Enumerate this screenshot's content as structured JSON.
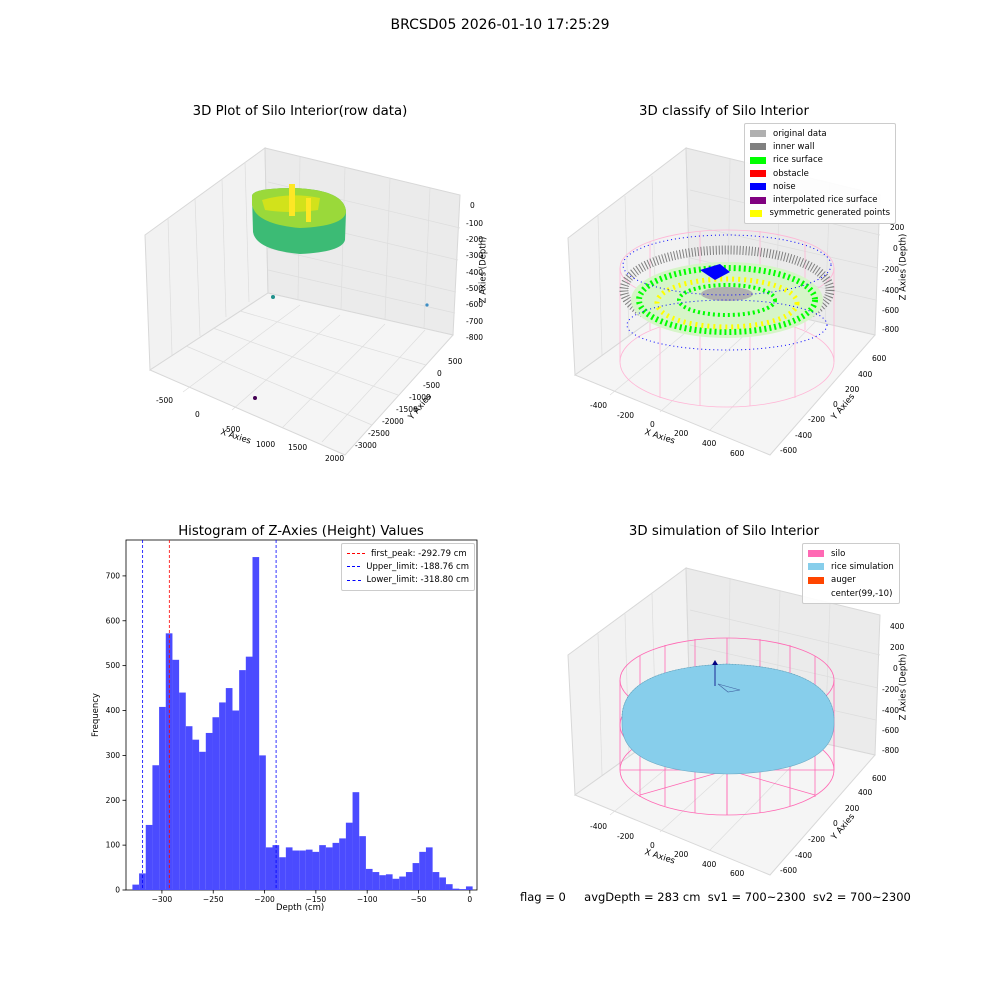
{
  "suptitle": "BRCSD05 2026-01-10 17:25:29",
  "panels": {
    "raw": {
      "title": "3D Plot of Silo Interior(row data)",
      "xlabel": "X Axies",
      "ylabel": "Y Axies",
      "zlabel": "Z Axies (Depth)",
      "xticks": [
        "-500",
        "0",
        "500",
        "1000",
        "1500",
        "2000"
      ],
      "yticks": [
        "500",
        "0",
        "-500",
        "-1000",
        "-1500",
        "-2000",
        "-2500",
        "-3000"
      ],
      "zticks": [
        "0",
        "-100",
        "-200",
        "-300",
        "-400",
        "-500",
        "-600",
        "-700",
        "-800"
      ]
    },
    "classify": {
      "title": "3D classify of Silo Interior",
      "xlabel": "X Axies",
      "ylabel": "Y Axies",
      "zlabel": "Z Axies (Depth)",
      "xticks": [
        "-400",
        "-200",
        "0",
        "200",
        "400",
        "600"
      ],
      "yticks": [
        "600",
        "400",
        "200",
        "0",
        "-200",
        "-400",
        "-600"
      ],
      "zticks": [
        "200",
        "0",
        "-200",
        "-400",
        "-600",
        "-800"
      ],
      "legend": [
        {
          "label": "original data",
          "color": "#b0b0b0"
        },
        {
          "label": "inner wall",
          "color": "#808080"
        },
        {
          "label": "rice surface",
          "color": "#00ff00"
        },
        {
          "label": "obstacle",
          "color": "#ff0000"
        },
        {
          "label": "noise",
          "color": "#0000ff"
        },
        {
          "label": "interpolated rice surface",
          "color": "#800080"
        },
        {
          "label": "symmetric generated points",
          "color": "#ffff00"
        }
      ]
    },
    "histogram": {
      "title": "Histogram of Z-Axies (Height) Values",
      "legend": [
        {
          "label": "first_peak: -292.79 cm",
          "color": "#ff0000"
        },
        {
          "label": "Upper_limit: -188.76 cm",
          "color": "#0000ff"
        },
        {
          "label": "Lower_limit: -318.80 cm",
          "color": "#0000ff"
        }
      ]
    },
    "simulation": {
      "title": "3D simulation of Silo Interior",
      "xlabel": "X Axies",
      "ylabel": "Y Axies",
      "zlabel": "Z Axies (Depth)",
      "xticks": [
        "-400",
        "-200",
        "0",
        "200",
        "400",
        "600"
      ],
      "yticks": [
        "600",
        "400",
        "200",
        "0",
        "-200",
        "-400",
        "-600"
      ],
      "zticks": [
        "400",
        "200",
        "0",
        "-200",
        "-400",
        "-600",
        "-800"
      ],
      "legend": [
        {
          "label": "silo",
          "color": "#ff69b4"
        },
        {
          "label": "rice simulation",
          "color": "#87ceeb"
        },
        {
          "label": "auger",
          "color": "#ff4500"
        },
        {
          "label": "center(99,-10)",
          "color": ""
        }
      ]
    }
  },
  "footer": {
    "flag": "flag = 0",
    "avg": "avgDepth = 283 cm",
    "sv1": "sv1 = 700~2300",
    "sv2": "sv2 = 700~2300"
  },
  "colors": {
    "bar": "#4b4bff",
    "peak": "#ff0000",
    "limit": "#0000ff",
    "silo": "#ff69b4",
    "rice": "#87ceeb"
  },
  "chart_data": {
    "type": "bar",
    "title": "Histogram of Z-Axies (Height) Values",
    "xlabel": "Depth (cm)",
    "ylabel": "Frequency",
    "xlim": [
      -335,
      7
    ],
    "ylim": [
      0,
      780
    ],
    "xticks": [
      -300,
      -250,
      -200,
      -150,
      -100,
      -50,
      0
    ],
    "yticks": [
      0,
      100,
      200,
      300,
      400,
      500,
      600,
      700
    ],
    "bin_width": 6.5,
    "bins": [
      {
        "x": -325.5,
        "y": 12
      },
      {
        "x": -319.0,
        "y": 37
      },
      {
        "x": -312.5,
        "y": 145
      },
      {
        "x": -306.0,
        "y": 278
      },
      {
        "x": -299.5,
        "y": 408
      },
      {
        "x": -293.0,
        "y": 572
      },
      {
        "x": -286.5,
        "y": 513
      },
      {
        "x": -280.0,
        "y": 440
      },
      {
        "x": -273.5,
        "y": 365
      },
      {
        "x": -267.0,
        "y": 335
      },
      {
        "x": -260.5,
        "y": 308
      },
      {
        "x": -254.0,
        "y": 350
      },
      {
        "x": -247.5,
        "y": 385
      },
      {
        "x": -241.0,
        "y": 418
      },
      {
        "x": -234.5,
        "y": 450
      },
      {
        "x": -228.0,
        "y": 400
      },
      {
        "x": -221.5,
        "y": 490
      },
      {
        "x": -215.0,
        "y": 520
      },
      {
        "x": -208.5,
        "y": 742
      },
      {
        "x": -202.0,
        "y": 300
      },
      {
        "x": -195.5,
        "y": 95
      },
      {
        "x": -189.0,
        "y": 100
      },
      {
        "x": -182.5,
        "y": 73
      },
      {
        "x": -176.0,
        "y": 95
      },
      {
        "x": -169.5,
        "y": 88
      },
      {
        "x": -163.0,
        "y": 88
      },
      {
        "x": -156.5,
        "y": 90
      },
      {
        "x": -150.0,
        "y": 85
      },
      {
        "x": -143.5,
        "y": 100
      },
      {
        "x": -137.0,
        "y": 95
      },
      {
        "x": -130.5,
        "y": 105
      },
      {
        "x": -124.0,
        "y": 115
      },
      {
        "x": -117.5,
        "y": 150
      },
      {
        "x": -111.0,
        "y": 218
      },
      {
        "x": -104.5,
        "y": 120
      },
      {
        "x": -98.0,
        "y": 47
      },
      {
        "x": -91.5,
        "y": 40
      },
      {
        "x": -85.0,
        "y": 33
      },
      {
        "x": -78.5,
        "y": 35
      },
      {
        "x": -72.0,
        "y": 25
      },
      {
        "x": -65.5,
        "y": 30
      },
      {
        "x": -59.0,
        "y": 40
      },
      {
        "x": -52.5,
        "y": 60
      },
      {
        "x": -46.0,
        "y": 85
      },
      {
        "x": -39.5,
        "y": 95
      },
      {
        "x": -33.0,
        "y": 40
      },
      {
        "x": -26.5,
        "y": 28
      },
      {
        "x": -20.0,
        "y": 13
      },
      {
        "x": -13.5,
        "y": 3
      },
      {
        "x": -7.0,
        "y": 2
      },
      {
        "x": -0.5,
        "y": 8
      }
    ],
    "vlines": [
      {
        "name": "first_peak",
        "x": -292.79,
        "color": "#ff0000"
      },
      {
        "name": "Upper_limit",
        "x": -188.76,
        "color": "#0000ff"
      },
      {
        "name": "Lower_limit",
        "x": -318.8,
        "color": "#0000ff"
      }
    ]
  }
}
